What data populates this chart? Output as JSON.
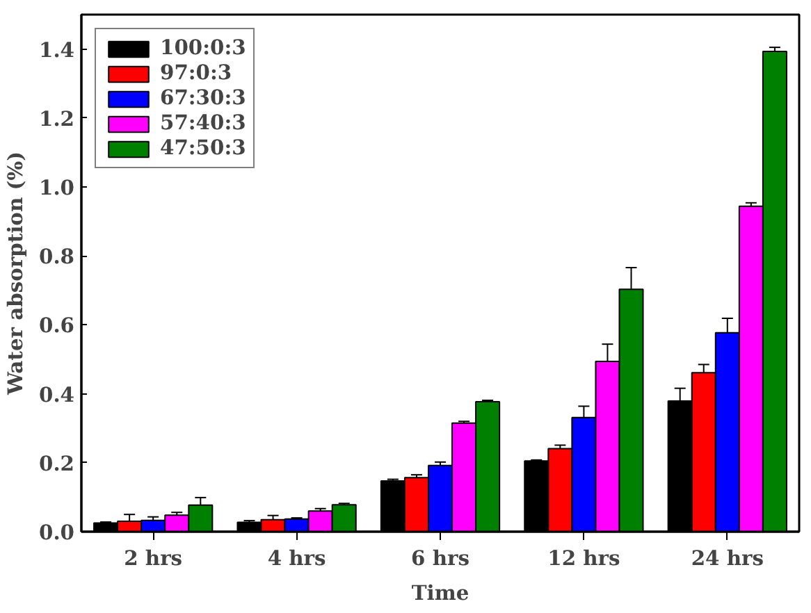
{
  "chart_data": {
    "type": "bar",
    "xlabel": "Time",
    "ylabel": "Water absorption (%)",
    "categories": [
      "2 hrs",
      "4 hrs",
      "6 hrs",
      "12 hrs",
      "24 hrs"
    ],
    "ylim": [
      0,
      1.5
    ],
    "yticks": [
      {
        "value": 0,
        "label": "0.0"
      },
      0.2,
      0.4,
      0.6,
      0.8,
      {
        "value": 1,
        "label": "1.0"
      },
      1.2,
      1.4
    ],
    "grid": false,
    "legend": "top left",
    "series": [
      {
        "name": "100:0:3",
        "color": "#000000",
        "values": [
          0.025,
          0.027,
          0.147,
          0.205,
          0.379
        ],
        "errors": [
          0.003,
          0.005,
          0.005,
          0.003,
          0.037
        ]
      },
      {
        "name": "97:0:3",
        "color": "#ff0000",
        "values": [
          0.03,
          0.035,
          0.157,
          0.241,
          0.461
        ],
        "errors": [
          0.02,
          0.012,
          0.008,
          0.01,
          0.024
        ]
      },
      {
        "name": "67:30:3",
        "color": "#0000ff",
        "values": [
          0.033,
          0.037,
          0.192,
          0.331,
          0.577
        ],
        "errors": [
          0.01,
          0.003,
          0.01,
          0.033,
          0.042
        ]
      },
      {
        "name": "57:40:3",
        "color": "#ff00ff",
        "values": [
          0.048,
          0.06,
          0.315,
          0.494,
          0.944
        ],
        "errors": [
          0.008,
          0.007,
          0.005,
          0.05,
          0.01
        ]
      },
      {
        "name": "47:50:3",
        "color": "#008000",
        "values": [
          0.077,
          0.078,
          0.377,
          0.703,
          1.393
        ],
        "errors": [
          0.022,
          0.004,
          0.004,
          0.063,
          0.012
        ]
      }
    ]
  }
}
